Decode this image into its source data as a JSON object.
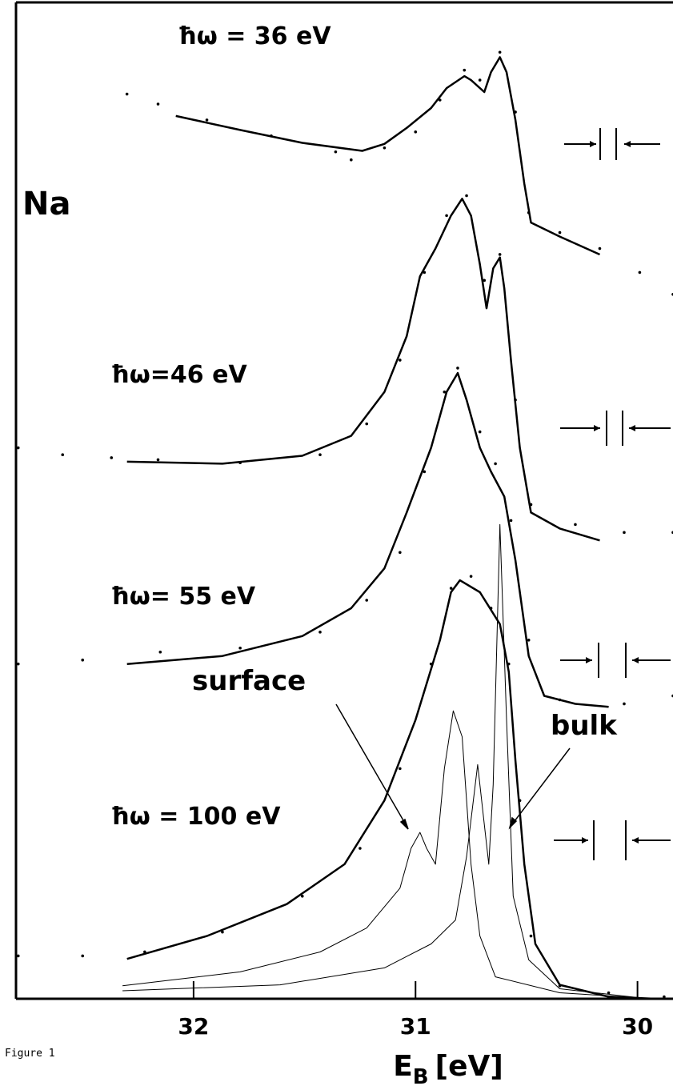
{
  "chart_data": {
    "type": "line",
    "xlabel": {
      "symbol": "E",
      "subscript": "B",
      "unit": "[eV]"
    },
    "xlim": [
      32.8,
      29.84
    ],
    "ylim": [
      0,
      100
    ],
    "xticks": [
      32,
      31,
      30
    ],
    "annotations": [
      "ħω = 36 eV",
      "Na",
      "ħω=46 eV",
      "ħω= 55 eV",
      "ħω = 100 eV",
      "surface",
      "bulk"
    ],
    "caption": "Figure 1",
    "series": [
      {
        "style": "line",
        "color": "#000000",
        "x": [
          32.08,
          31.79,
          31.51,
          31.24,
          31.14,
          31.04,
          30.93,
          30.86,
          30.78,
          30.75,
          30.69,
          30.66,
          30.62,
          30.59,
          30.55,
          30.51,
          30.48,
          30.35,
          30.17
        ],
        "values": [
          88.6,
          87.2,
          85.9,
          85.1,
          85.8,
          87.4,
          89.4,
          91.4,
          92.6,
          92.2,
          91.0,
          93.0,
          94.5,
          93.0,
          88.2,
          81.8,
          77.9,
          76.5,
          74.7
        ]
      },
      {
        "style": "points",
        "color": "#000000",
        "x": [
          32.3,
          32.16,
          31.94,
          31.65,
          31.36,
          31.29,
          31.14,
          31.0,
          30.89,
          30.78,
          30.71,
          30.62,
          30.55,
          30.49,
          30.35,
          30.17,
          29.99,
          29.84
        ],
        "values": [
          90.8,
          89.8,
          88.2,
          86.6,
          85.0,
          84.2,
          85.4,
          87.0,
          90.2,
          93.2,
          92.2,
          95.0,
          89.0,
          78.9,
          76.9,
          75.3,
          72.9,
          70.7
        ]
      },
      {
        "style": "line",
        "color": "#000000",
        "x": [
          32.3,
          31.87,
          31.51,
          31.29,
          31.14,
          31.04,
          30.98,
          30.91,
          30.84,
          30.79,
          30.75,
          30.71,
          30.68,
          30.65,
          30.62,
          30.6,
          30.57,
          30.53,
          30.48,
          30.35,
          30.17
        ],
        "values": [
          53.9,
          53.7,
          54.5,
          56.5,
          60.9,
          66.5,
          72.5,
          75.3,
          78.6,
          80.3,
          78.6,
          73.7,
          69.3,
          73.3,
          74.4,
          71.3,
          64.1,
          55.3,
          48.8,
          47.2,
          46.0
        ]
      },
      {
        "style": "points",
        "color": "#000000",
        "x": [
          32.79,
          32.59,
          32.37,
          32.16,
          31.79,
          31.43,
          31.22,
          31.07,
          30.96,
          30.86,
          30.77,
          30.69,
          30.62,
          30.55,
          30.48,
          30.28,
          30.06,
          29.84
        ],
        "values": [
          55.3,
          54.6,
          54.3,
          54.1,
          53.8,
          54.6,
          57.7,
          64.1,
          72.9,
          78.6,
          80.6,
          72.1,
          74.7,
          60.1,
          49.6,
          47.6,
          46.8,
          46.8
        ]
      },
      {
        "style": "line",
        "color": "#000000",
        "x": [
          32.3,
          31.87,
          31.51,
          31.29,
          31.14,
          31.04,
          30.93,
          30.86,
          30.81,
          30.77,
          30.71,
          30.66,
          30.6,
          30.55,
          30.49,
          30.42,
          30.28,
          30.13
        ],
        "values": [
          33.6,
          34.4,
          36.4,
          39.2,
          43.2,
          48.8,
          55.3,
          60.9,
          62.8,
          60.1,
          55.3,
          52.9,
          50.4,
          44.0,
          34.4,
          30.4,
          29.6,
          29.3
        ]
      },
      {
        "style": "points",
        "color": "#000000",
        "x": [
          32.79,
          32.5,
          32.15,
          31.79,
          31.43,
          31.22,
          31.07,
          30.96,
          30.87,
          30.81,
          30.71,
          30.64,
          30.57,
          30.49,
          30.35,
          30.06,
          29.84
        ],
        "values": [
          33.6,
          34.0,
          34.8,
          35.2,
          36.8,
          40.0,
          44.8,
          52.9,
          60.9,
          63.3,
          56.9,
          53.7,
          48.0,
          36.0,
          30.0,
          29.6,
          30.4
        ]
      },
      {
        "style": "line",
        "color": "#000000",
        "x": [
          32.3,
          31.94,
          31.58,
          31.32,
          31.14,
          31.0,
          30.89,
          30.84,
          30.8,
          30.71,
          30.62,
          30.58,
          30.55,
          30.51,
          30.46,
          30.35,
          30.13,
          29.92
        ],
        "values": [
          4.0,
          6.3,
          9.5,
          13.5,
          19.9,
          28.0,
          36.0,
          40.8,
          42.0,
          40.8,
          37.6,
          32.8,
          23.9,
          13.5,
          5.5,
          1.4,
          0.2,
          0
        ]
      },
      {
        "style": "points",
        "color": "#000000",
        "x": [
          32.79,
          32.5,
          32.22,
          31.87,
          31.51,
          31.25,
          31.07,
          30.93,
          30.84,
          30.75,
          30.66,
          30.58,
          30.53,
          30.48,
          30.35,
          30.13,
          29.88
        ],
        "values": [
          4.3,
          4.3,
          4.7,
          6.7,
          10.3,
          15.1,
          23.1,
          33.6,
          41.2,
          42.4,
          39.2,
          33.6,
          19.9,
          6.3,
          1.3,
          0.6,
          0.2
        ]
      },
      {
        "style": "thin",
        "color": "#000000",
        "x": [
          32.32,
          31.79,
          31.43,
          31.22,
          31.07,
          31.02,
          30.98,
          30.95,
          30.91,
          30.87,
          30.83,
          30.79,
          30.75,
          30.71,
          30.64,
          30.35,
          29.99
        ],
        "values": [
          1.3,
          2.7,
          4.7,
          7.1,
          11.1,
          15.1,
          16.7,
          15.1,
          13.5,
          23.1,
          28.9,
          26.3,
          13.5,
          6.3,
          2.2,
          0.6,
          0.1
        ]
      },
      {
        "style": "thin",
        "color": "#000000",
        "x": [
          32.32,
          31.61,
          31.14,
          30.93,
          30.82,
          30.77,
          30.72,
          30.69,
          30.67,
          30.65,
          30.62,
          30.59,
          30.56,
          30.49,
          30.35,
          29.99
        ],
        "values": [
          0.8,
          1.4,
          3.1,
          5.5,
          7.9,
          14.3,
          23.5,
          17.5,
          13.5,
          21.5,
          47.6,
          28.0,
          10.3,
          3.9,
          1.0,
          0.1
        ]
      }
    ]
  }
}
